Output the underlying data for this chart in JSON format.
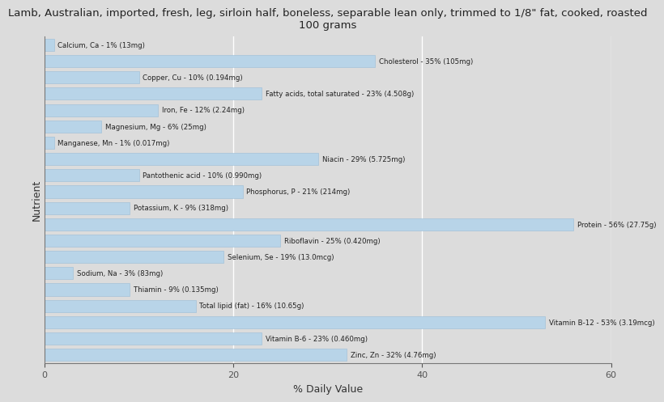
{
  "title": "Lamb, Australian, imported, fresh, leg, sirloin half, boneless, separable lean only, trimmed to 1/8\" fat, cooked, roasted\n100 grams",
  "xlabel": "% Daily Value",
  "ylabel": "Nutrient",
  "background_color": "#dcdcdc",
  "bar_color": "#b8d4e8",
  "bar_edge_color": "#9bbdd6",
  "text_color": "#222222",
  "xlim": [
    0,
    60
  ],
  "xticks": [
    0,
    20,
    40,
    60
  ],
  "nutrients": [
    {
      "label": "Calcium, Ca - 1% (13mg)",
      "value": 1
    },
    {
      "label": "Cholesterol - 35% (105mg)",
      "value": 35
    },
    {
      "label": "Copper, Cu - 10% (0.194mg)",
      "value": 10
    },
    {
      "label": "Fatty acids, total saturated - 23% (4.508g)",
      "value": 23
    },
    {
      "label": "Iron, Fe - 12% (2.24mg)",
      "value": 12
    },
    {
      "label": "Magnesium, Mg - 6% (25mg)",
      "value": 6
    },
    {
      "label": "Manganese, Mn - 1% (0.017mg)",
      "value": 1
    },
    {
      "label": "Niacin - 29% (5.725mg)",
      "value": 29
    },
    {
      "label": "Pantothenic acid - 10% (0.990mg)",
      "value": 10
    },
    {
      "label": "Phosphorus, P - 21% (214mg)",
      "value": 21
    },
    {
      "label": "Potassium, K - 9% (318mg)",
      "value": 9
    },
    {
      "label": "Protein - 56% (27.75g)",
      "value": 56
    },
    {
      "label": "Riboflavin - 25% (0.420mg)",
      "value": 25
    },
    {
      "label": "Selenium, Se - 19% (13.0mcg)",
      "value": 19
    },
    {
      "label": "Sodium, Na - 3% (83mg)",
      "value": 3
    },
    {
      "label": "Thiamin - 9% (0.135mg)",
      "value": 9
    },
    {
      "label": "Total lipid (fat) - 16% (10.65g)",
      "value": 16
    },
    {
      "label": "Vitamin B-12 - 53% (3.19mcg)",
      "value": 53
    },
    {
      "label": "Vitamin B-6 - 23% (0.460mg)",
      "value": 23
    },
    {
      "label": "Zinc, Zn - 32% (4.76mg)",
      "value": 32
    }
  ]
}
